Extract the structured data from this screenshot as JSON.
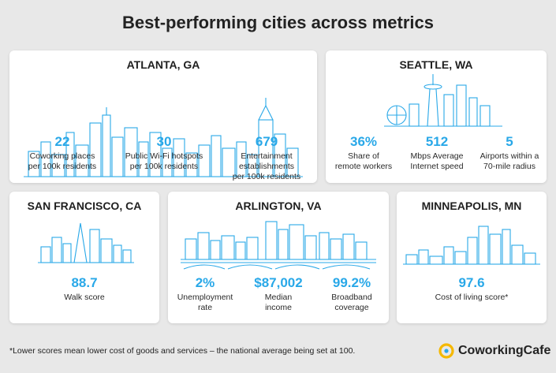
{
  "page_title": "Best-performing cities across metrics",
  "cities": {
    "atlanta": {
      "name": "ATLANTA, GA",
      "stats": [
        {
          "value": "22",
          "label_lines": [
            "Coworking places",
            "per 100k residents"
          ]
        },
        {
          "value": "30",
          "label_lines": [
            "Public Wi-Fi hotspots",
            "per 100k residents"
          ]
        },
        {
          "value": "679",
          "label_lines": [
            "Entertainment",
            "establishments",
            "per 100k residents"
          ]
        }
      ]
    },
    "seattle": {
      "name": "SEATTLE, WA",
      "stats": [
        {
          "value": "36%",
          "label_lines": [
            "Share of",
            "remote workers"
          ]
        },
        {
          "value": "512",
          "label_lines": [
            "Mbps Average",
            "Internet speed"
          ]
        },
        {
          "value": "5",
          "label_lines": [
            "Airports within a",
            "70-mile radius"
          ]
        }
      ]
    },
    "san_francisco": {
      "name": "SAN FRANCISCO, CA",
      "stats": [
        {
          "value": "88.7",
          "label_lines": [
            "Walk score"
          ]
        }
      ]
    },
    "arlington": {
      "name": "ARLINGTON, VA",
      "stats": [
        {
          "value": "2%",
          "label_lines": [
            "Unemployment",
            "rate"
          ]
        },
        {
          "value": "$87,002",
          "label_lines": [
            "Median",
            "income"
          ]
        },
        {
          "value": "99.2%",
          "label_lines": [
            "Broadband",
            "coverage"
          ]
        }
      ]
    },
    "minneapolis": {
      "name": "MINNEAPOLIS, MN",
      "stats": [
        {
          "value": "97.6",
          "label_lines": [
            "Cost of living score*"
          ]
        }
      ]
    }
  },
  "footnote": "*Lower scores mean lower cost of goods and services – the national average being set at 100.",
  "brand": {
    "name": "CoworkingCafe",
    "logo_icon": "coworkingcafe-logo-icon"
  },
  "colors": {
    "accent": "#29a8e8",
    "background": "#e8e8e8",
    "card": "#ffffff",
    "logo_yellow": "#f5b800"
  }
}
